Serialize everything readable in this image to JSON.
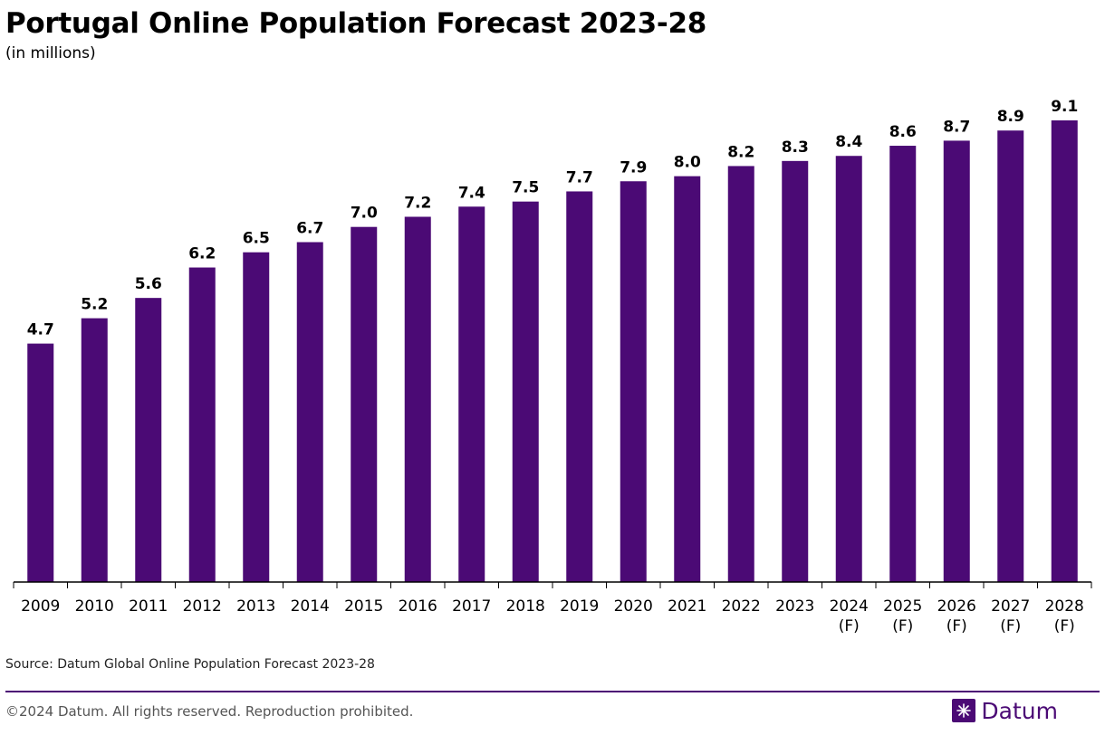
{
  "header": {
    "title": "Portugal Online Population Forecast 2023-28",
    "subtitle": "(in millions)"
  },
  "footer": {
    "source": "Source: Datum Global Online Population Forecast 2023-28",
    "copyright": "©2024 Datum. All rights reserved. Reproduction prohibited.",
    "brand": "Datum"
  },
  "colors": {
    "bar": "#4b0a75",
    "accent": "#4b0a75"
  },
  "chart_data": {
    "type": "bar",
    "title": "Portugal Online Population Forecast 2023-28",
    "subtitle": "(in millions)",
    "categories": [
      [
        "2009"
      ],
      [
        "2010"
      ],
      [
        "2011"
      ],
      [
        "2012"
      ],
      [
        "2013"
      ],
      [
        "2014"
      ],
      [
        "2015"
      ],
      [
        "2016"
      ],
      [
        "2017"
      ],
      [
        "2018"
      ],
      [
        "2019"
      ],
      [
        "2020"
      ],
      [
        "2021"
      ],
      [
        "2022"
      ],
      [
        "2023"
      ],
      [
        "2024",
        "(F)"
      ],
      [
        "2025",
        "(F)"
      ],
      [
        "2026",
        "(F)"
      ],
      [
        "2027",
        "(F)"
      ],
      [
        "2028",
        "(F)"
      ]
    ],
    "values": [
      4.7,
      5.2,
      5.6,
      6.2,
      6.5,
      6.7,
      7.0,
      7.2,
      7.4,
      7.5,
      7.7,
      7.9,
      8.0,
      8.2,
      8.3,
      8.4,
      8.6,
      8.7,
      8.9,
      9.1
    ],
    "data_labels": [
      "4.7",
      "5.2",
      "5.6",
      "6.2",
      "6.5",
      "6.7",
      "7.0",
      "7.2",
      "7.4",
      "7.5",
      "7.7",
      "7.9",
      "8.0",
      "8.2",
      "8.3",
      "8.4",
      "8.6",
      "8.7",
      "8.9",
      "9.1"
    ],
    "xlabel": "",
    "ylabel": "",
    "ylim": [
      0,
      9.1
    ],
    "grid": false,
    "legend": "none"
  }
}
